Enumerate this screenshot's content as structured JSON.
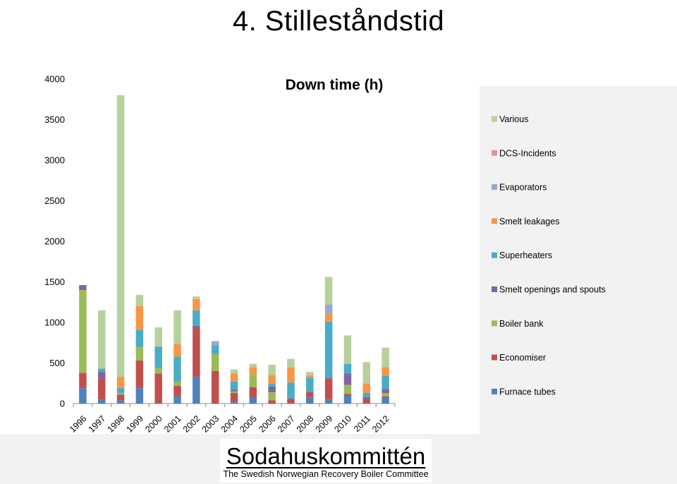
{
  "slide": {
    "title": "4. Stilleståndstid"
  },
  "logo": {
    "name": "Sodahuskommittén",
    "subtitle": "The Swedish Norwegian Recovery Boiler Committee"
  },
  "chart_data": {
    "type": "bar",
    "stacked": true,
    "title": "Down time (h)",
    "xlabel": "",
    "ylabel": "",
    "ylim": [
      0,
      4000
    ],
    "yticks": [
      0,
      500,
      1000,
      1500,
      2000,
      2500,
      3000,
      3500,
      4000
    ],
    "grid": false,
    "legend_position": "right",
    "categories": [
      "1996",
      "1997",
      "1998",
      "1999",
      "2000",
      "2001",
      "2002",
      "2003",
      "2004",
      "2005",
      "2006",
      "2007",
      "2008",
      "2009",
      "2010",
      "2011",
      "2012"
    ],
    "series": [
      {
        "name": "Furnace tubes",
        "color": "#4f81bd",
        "values": [
          190,
          50,
          40,
          190,
          0,
          90,
          330,
          0,
          20,
          70,
          0,
          0,
          80,
          50,
          100,
          0,
          70
        ]
      },
      {
        "name": "Economiser",
        "color": "#c0504d",
        "values": [
          190,
          260,
          70,
          340,
          370,
          130,
          600,
          400,
          110,
          130,
          40,
          60,
          60,
          260,
          20,
          60,
          20
        ]
      },
      {
        "name": "Boiler bank",
        "color": "#9bbb59",
        "values": [
          1020,
          0,
          20,
          170,
          70,
          50,
          0,
          210,
          20,
          160,
          100,
          0,
          0,
          0,
          110,
          0,
          40
        ]
      },
      {
        "name": "Smelt openings and spouts",
        "color": "#8064a2",
        "values": [
          60,
          80,
          0,
          0,
          0,
          0,
          30,
          0,
          20,
          0,
          70,
          0,
          0,
          10,
          140,
          20,
          50
        ]
      },
      {
        "name": "Superheaters",
        "color": "#4bacc6",
        "values": [
          0,
          40,
          60,
          210,
          260,
          310,
          190,
          110,
          100,
          0,
          40,
          200,
          180,
          690,
          120,
          50,
          160
        ]
      },
      {
        "name": "Smelt leakages",
        "color": "#f79646",
        "values": [
          0,
          0,
          140,
          290,
          0,
          150,
          140,
          0,
          100,
          90,
          100,
          190,
          30,
          100,
          0,
          120,
          110
        ]
      },
      {
        "name": "Evaporators",
        "color": "#95a9d1",
        "values": [
          0,
          0,
          0,
          0,
          0,
          0,
          0,
          50,
          0,
          0,
          0,
          0,
          0,
          110,
          0,
          0,
          0
        ]
      },
      {
        "name": "DCS-Incidents",
        "color": "#e2959a",
        "values": [
          0,
          0,
          0,
          0,
          0,
          0,
          0,
          0,
          0,
          0,
          0,
          0,
          0,
          0,
          0,
          0,
          0
        ]
      },
      {
        "name": "Various",
        "color": "#b7d19c",
        "values": [
          0,
          720,
          3470,
          140,
          240,
          420,
          30,
          0,
          50,
          40,
          130,
          100,
          40,
          340,
          350,
          260,
          240
        ]
      }
    ]
  }
}
